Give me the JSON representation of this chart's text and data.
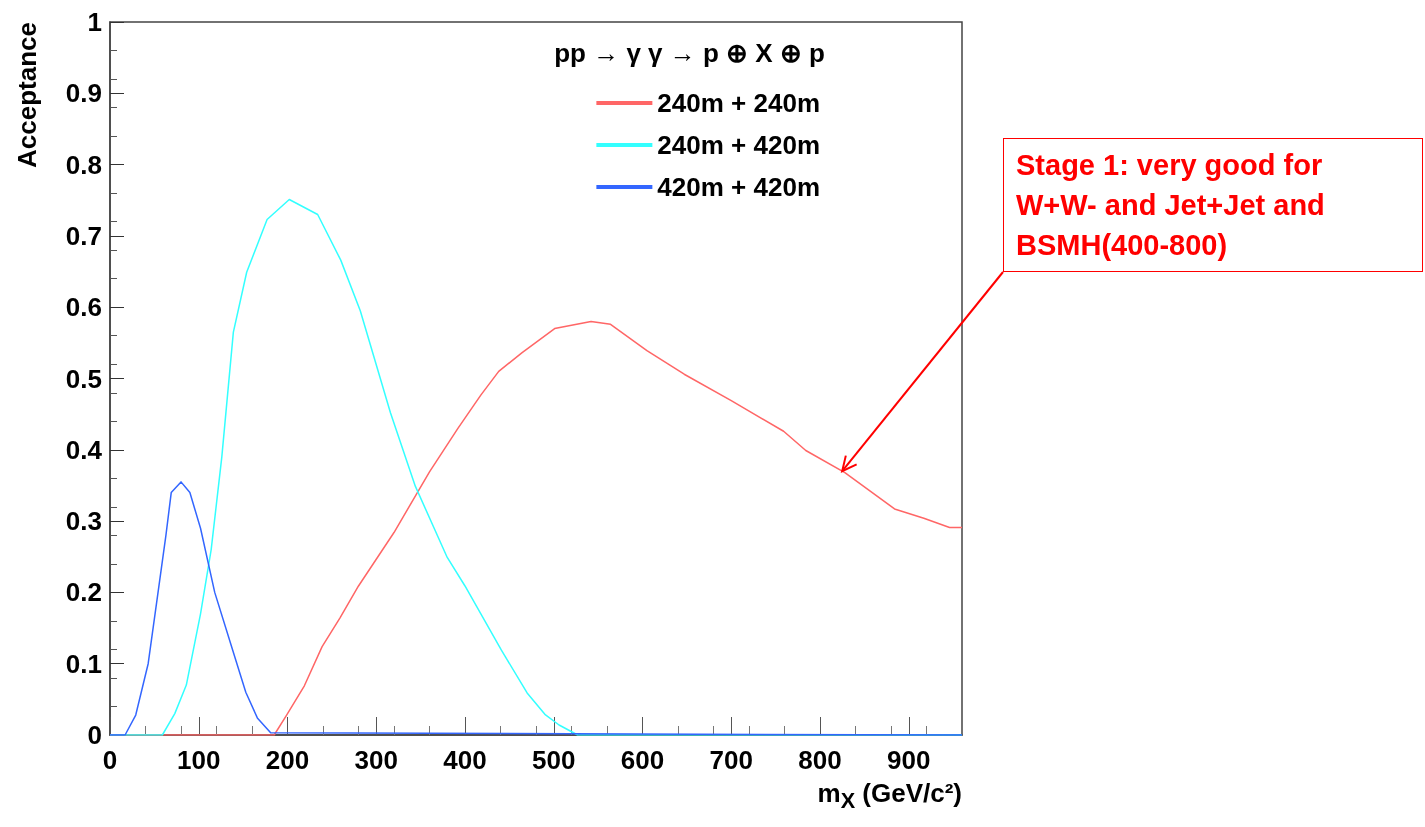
{
  "chart_data": {
    "type": "line",
    "xlabel": "m$_{X}$ (GeV/c²)",
    "ylabel": "Acceptance",
    "legend_title": "pp → γ γ → p ⊕ X ⊕ p",
    "xlim": [
      0,
      960
    ],
    "xticks": [
      0,
      100,
      200,
      300,
      400,
      500,
      600,
      700,
      800,
      900
    ],
    "ylim": [
      0,
      1
    ],
    "yticks": [
      0,
      0.1,
      0.2,
      0.3,
      0.4,
      0.5,
      0.6,
      0.7,
      0.8,
      0.9,
      1
    ],
    "grid": false,
    "legend": "top right",
    "marker": "none",
    "line_style": "solid",
    "annotations": [
      {
        "text": "Stage 1: very good for W+W- and Jet+Jet and BSMH(400-800)",
        "x": 825,
        "y": 0.37
      }
    ],
    "series": [
      {
        "name": "240m + 240m",
        "color": "#ff6666",
        "x": [
          0,
          185,
          199,
          219,
          239,
          259,
          280,
          320,
          360,
          392,
          418,
          438,
          464,
          501,
          542,
          564,
          605,
          647,
          700,
          759,
          784,
          828,
          884,
          917,
          946,
          960
        ],
        "values": [
          0,
          0,
          0.028,
          0.069,
          0.124,
          0.164,
          0.209,
          0.284,
          0.369,
          0.43,
          0.477,
          0.51,
          0.536,
          0.57,
          0.58,
          0.576,
          0.539,
          0.506,
          0.469,
          0.426,
          0.399,
          0.368,
          0.317,
          0.304,
          0.291,
          0.291
        ]
      },
      {
        "name": "240m + 420m",
        "color": "#33ffff",
        "x": [
          0,
          59,
          73,
          86,
          102,
          114,
          126,
          139,
          154,
          177,
          202,
          234,
          260,
          282,
          316,
          344,
          380,
          400,
          441,
          470,
          490,
          506,
          527,
          960
        ],
        "values": [
          0,
          0,
          0.03,
          0.07,
          0.17,
          0.26,
          0.39,
          0.565,
          0.649,
          0.723,
          0.751,
          0.73,
          0.666,
          0.595,
          0.452,
          0.349,
          0.249,
          0.209,
          0.119,
          0.059,
          0.029,
          0.014,
          0,
          0
        ]
      },
      {
        "name": "420m + 420m",
        "color": "#3366ff",
        "x": [
          0,
          17,
          29,
          43,
          53,
          63,
          69,
          80,
          90,
          102,
          118,
          138,
          153,
          166,
          181,
          960
        ],
        "values": [
          0,
          0,
          0.028,
          0.1,
          0.19,
          0.28,
          0.34,
          0.355,
          0.34,
          0.29,
          0.2,
          0.12,
          0.06,
          0.024,
          0.003,
          0
        ]
      }
    ]
  }
}
